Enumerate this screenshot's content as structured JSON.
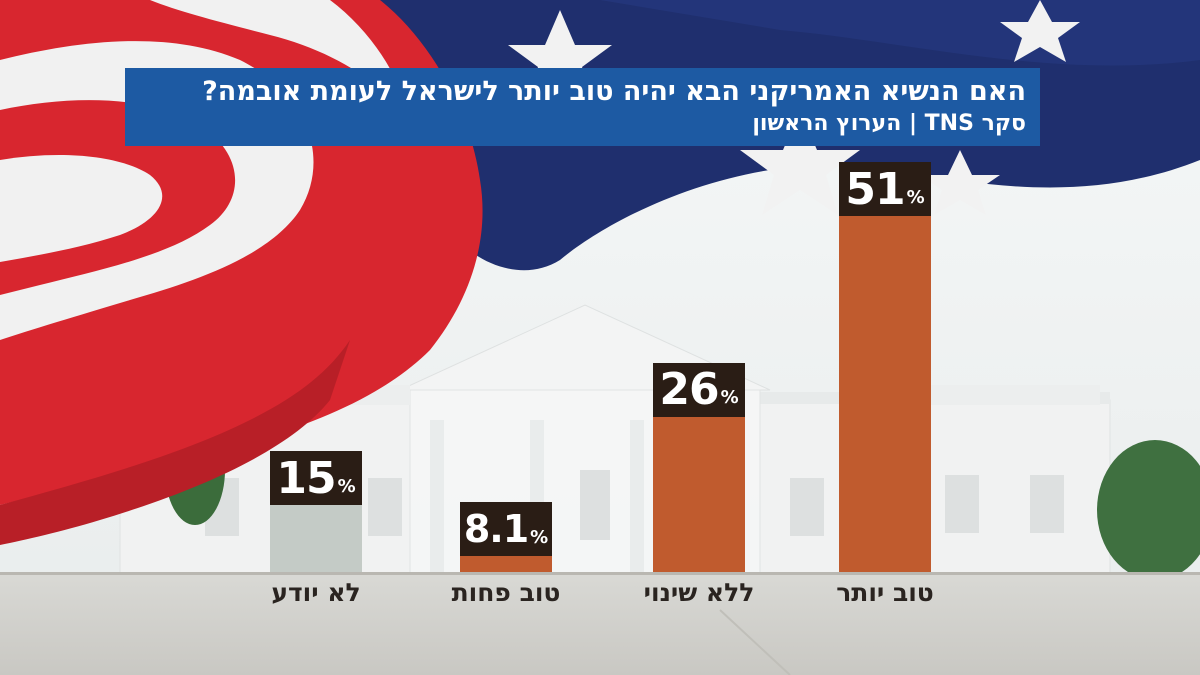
{
  "title": "האם הנשיא האמריקני הבא יהיה טוב יותר לישראל לעומת אובמה?",
  "subtitle": "סקר TNS  |  הערוץ הראשון",
  "colors": {
    "title_bg": "#1d5aa3",
    "bar_main": "#c05b2e",
    "bar_dontknow": "#c4cbc6",
    "value_box": "#2a1d15"
  },
  "chart_data": {
    "type": "bar",
    "categories": [
      "טוב יותר",
      "ללא שינוי",
      "טוב פחות",
      "לא יודע"
    ],
    "values": [
      51,
      26,
      8.1,
      15
    ],
    "value_labels": [
      "51",
      "26",
      "8.1",
      "15"
    ],
    "unit": "%",
    "title": "האם הנשיא האמריקני הבא יהיה טוב יותר לישראל לעומת אובמה?",
    "xlabel": "",
    "ylabel": "",
    "ylim": [
      0,
      51
    ],
    "grid": false,
    "legend": "none"
  }
}
